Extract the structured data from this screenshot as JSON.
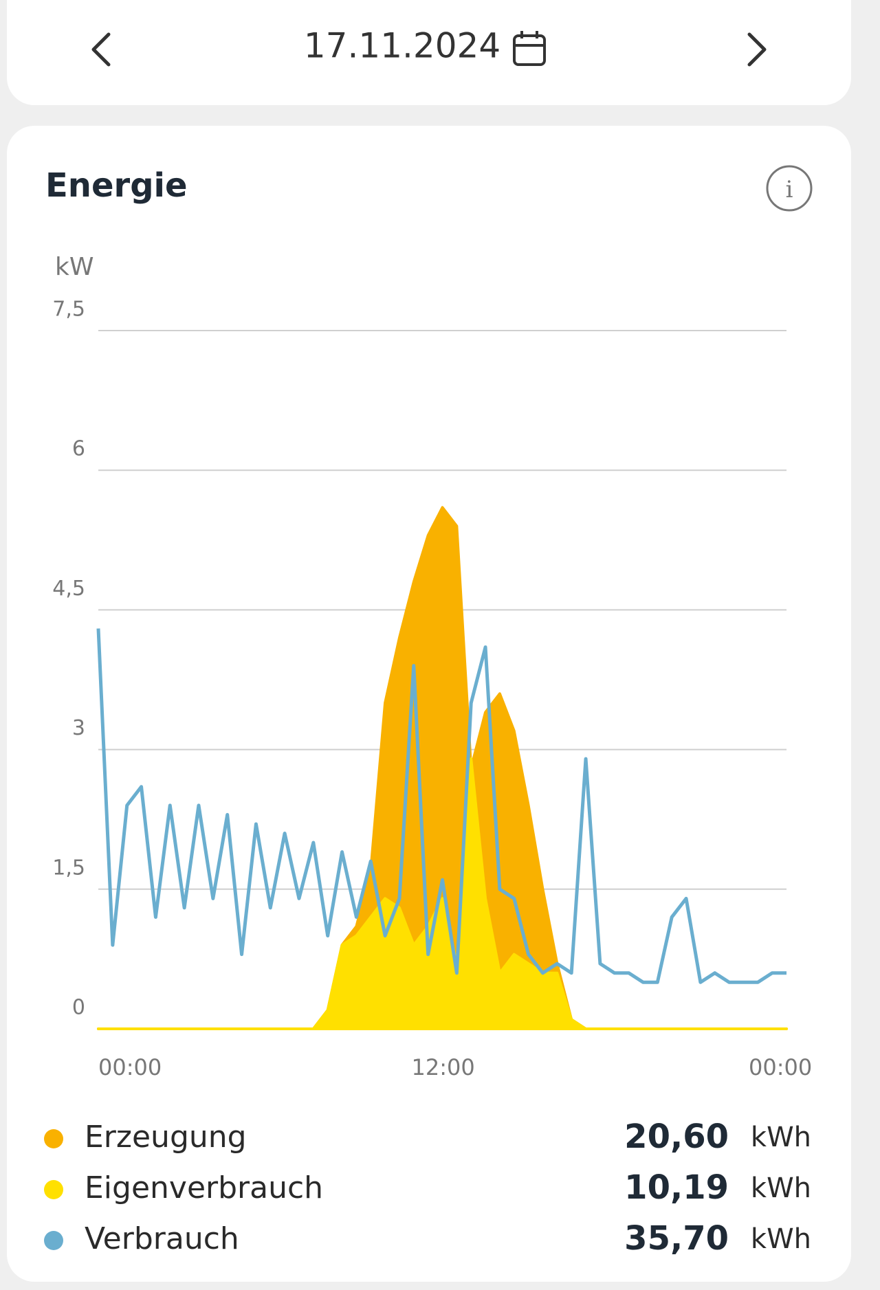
{
  "header": {
    "date": "17.11.2024"
  },
  "card": {
    "title": "Energie"
  },
  "chart_data": {
    "type": "area",
    "y_label": "kW",
    "xlim": [
      0,
      24
    ],
    "xticks": [
      {
        "value": 0,
        "label": "00:00"
      },
      {
        "value": 12,
        "label": "12:00"
      },
      {
        "value": 24,
        "label": "00:00"
      }
    ],
    "ylim": [
      0,
      7.5
    ],
    "yticks": [
      {
        "value": 0,
        "label": "0"
      },
      {
        "value": 1.5,
        "label": "1,5"
      },
      {
        "value": 3,
        "label": "3"
      },
      {
        "value": 4.5,
        "label": "4,5"
      },
      {
        "value": 6,
        "label": "6"
      },
      {
        "value": 7.5,
        "label": "7,5"
      }
    ],
    "grid": true,
    "x": [
      0,
      0.5,
      1,
      1.5,
      2,
      2.5,
      3,
      3.5,
      4,
      4.5,
      5,
      5.5,
      6,
      6.5,
      7,
      7.5,
      8,
      8.5,
      9,
      9.5,
      10,
      10.5,
      11,
      11.5,
      12,
      12.5,
      13,
      13.5,
      14,
      14.5,
      15,
      15.5,
      16,
      16.5,
      17,
      17.5,
      18,
      18.5,
      19,
      19.5,
      20,
      20.5,
      21,
      21.5,
      22,
      22.5,
      23,
      23.5,
      24
    ],
    "series": [
      {
        "name": "Erzeugung",
        "color": "#f9b100",
        "style": "area",
        "total": "20,60",
        "unit": "kWh",
        "values": [
          0,
          0,
          0,
          0,
          0,
          0,
          0,
          0,
          0,
          0,
          0,
          0,
          0,
          0,
          0,
          0,
          0.2,
          0.9,
          1.1,
          1.7,
          3.5,
          4.2,
          4.8,
          5.3,
          5.6,
          5.4,
          2.8,
          3.4,
          3.6,
          3.2,
          2.4,
          1.5,
          0.7,
          0.1,
          0,
          0,
          0,
          0,
          0,
          0,
          0,
          0,
          0,
          0,
          0,
          0,
          0,
          0,
          0
        ]
      },
      {
        "name": "Eigenverbrauch",
        "color": "#ffe000",
        "style": "area",
        "total": "10,19",
        "unit": "kWh",
        "values": [
          0,
          0,
          0,
          0,
          0,
          0,
          0,
          0,
          0,
          0,
          0,
          0,
          0,
          0,
          0,
          0,
          0.2,
          0.9,
          1.0,
          1.2,
          1.4,
          1.3,
          0.9,
          1.1,
          1.4,
          0.7,
          2.9,
          1.4,
          0.6,
          0.8,
          0.7,
          0.6,
          0.6,
          0.1,
          0,
          0,
          0,
          0,
          0,
          0,
          0,
          0,
          0,
          0,
          0,
          0,
          0,
          0,
          0
        ]
      },
      {
        "name": "Verbrauch",
        "color": "#6aaecf",
        "style": "line",
        "total": "35,70",
        "unit": "kWh",
        "values": [
          4.3,
          0.9,
          2.4,
          2.6,
          1.2,
          2.4,
          1.3,
          2.4,
          1.4,
          2.3,
          0.8,
          2.2,
          1.3,
          2.1,
          1.4,
          2.0,
          1.0,
          1.9,
          1.2,
          1.8,
          1.0,
          1.4,
          3.9,
          0.8,
          1.6,
          0.6,
          3.5,
          4.1,
          1.5,
          1.4,
          0.8,
          0.6,
          0.7,
          0.6,
          2.9,
          0.7,
          0.6,
          0.6,
          0.5,
          0.5,
          1.2,
          1.4,
          0.5,
          0.6,
          0.5,
          0.5,
          0.5,
          0.6,
          0.6
        ]
      }
    ]
  }
}
